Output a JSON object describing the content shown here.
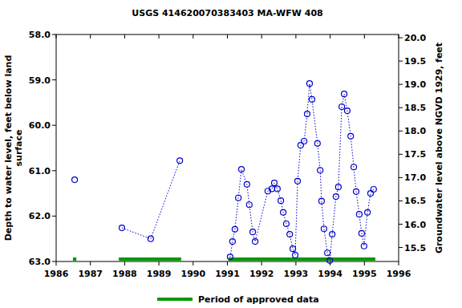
{
  "chart_data": {
    "type": "line",
    "title": "USGS 414620070383403 MA-WFW  408",
    "y_label": [
      "Depth to water level, feet below land",
      "surface"
    ],
    "y2_label": "Groundwater level above NGVD 1929, feet",
    "xlim": [
      1986,
      1996
    ],
    "xticks": [
      1986,
      1987,
      1988,
      1989,
      1990,
      1991,
      1992,
      1993,
      1994,
      1995,
      1996
    ],
    "ylim": [
      63,
      58
    ],
    "yticks": [
      {
        "value": 58,
        "label": "58.0"
      },
      {
        "value": 59,
        "label": "59.0"
      },
      {
        "value": 60,
        "label": "60.0"
      },
      {
        "value": 61,
        "label": "61.0"
      },
      {
        "value": 62,
        "label": "62.0"
      },
      {
        "value": 63,
        "label": "63.0"
      }
    ],
    "y2lim": [
      15.2,
      20.07
    ],
    "y2ticks": [
      {
        "value": 15.5,
        "label": "15.5"
      },
      {
        "value": 16,
        "label": "16.0"
      },
      {
        "value": 16.5,
        "label": "16.5"
      },
      {
        "value": 17,
        "label": "17.0"
      },
      {
        "value": 17.5,
        "label": "17.5"
      },
      {
        "value": 18,
        "label": "18.0"
      },
      {
        "value": 18.5,
        "label": "18.5"
      },
      {
        "value": 19,
        "label": "19.0"
      },
      {
        "value": 19.5,
        "label": "19.5"
      },
      {
        "value": 20,
        "label": "20.0"
      }
    ],
    "grid": false,
    "series": [
      {
        "color": "#0000cc",
        "marker": "circle",
        "line_style": "dotted",
        "x": [
          1986.54,
          null,
          1987.92,
          1988.76,
          1989.61,
          null,
          1991.08,
          1991.15,
          1991.22,
          1991.32,
          1991.41,
          1991.57,
          1991.64,
          1991.74,
          1991.81,
          1992.18,
          1992.3,
          1992.37,
          1992.46,
          1992.56,
          1992.63,
          1992.72,
          1992.82,
          1992.91,
          1992.98,
          1993.05,
          1993.14,
          1993.24,
          1993.33,
          1993.4,
          1993.47,
          1993.63,
          1993.71,
          1993.75,
          1993.82,
          1993.92,
          1993.99,
          1994.06,
          1994.17,
          1994.24,
          1994.34,
          1994.41,
          1994.5,
          1994.6,
          1994.69,
          1994.76,
          1994.85,
          1994.92,
          1994.99,
          1995.09,
          1995.18,
          1995.27
        ],
        "values": [
          61.2,
          null,
          62.26,
          62.5,
          60.78,
          null,
          62.9,
          62.56,
          62.29,
          61.6,
          60.97,
          61.3,
          61.75,
          62.35,
          62.56,
          61.45,
          61.4,
          61.27,
          61.4,
          61.66,
          61.92,
          62.17,
          62.4,
          62.72,
          62.86,
          61.23,
          60.44,
          60.35,
          59.75,
          59.08,
          59.43,
          60.4,
          60.99,
          61.67,
          62.28,
          62.81,
          62.98,
          62.4,
          61.57,
          61.36,
          59.59,
          59.31,
          59.68,
          60.24,
          60.92,
          61.46,
          61.96,
          62.38,
          62.66,
          61.92,
          61.5,
          61.41
        ]
      }
    ],
    "approved_periods": {
      "label": "Period of approved data",
      "color": "#009900",
      "ranges": [
        [
          1986.49,
          1986.59
        ],
        [
          1987.83,
          1989.65
        ],
        [
          1991.03,
          1995.32
        ]
      ]
    }
  }
}
